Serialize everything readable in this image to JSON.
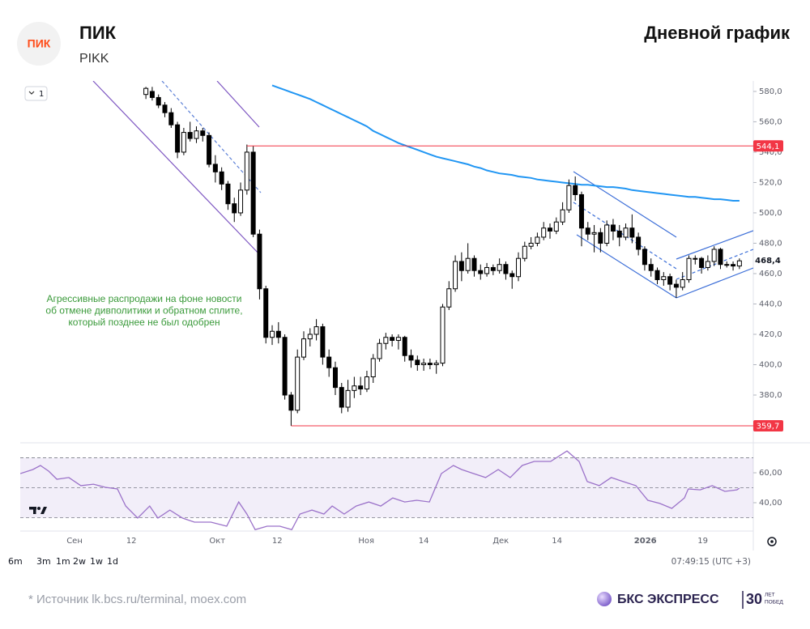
{
  "header": {
    "logo": "ПИК",
    "title": "ПИК",
    "ticker": "PIKK",
    "chart_kind": "Дневной график"
  },
  "toolbar": {
    "interval": "1",
    "ranges": [
      "6m",
      "3m",
      "1m",
      "2w",
      "1w",
      "1d"
    ],
    "time": "07:49:15 (UTC +3)"
  },
  "footer": {
    "source": "*  Источник lk.bcs.ru/terminal, moex.com",
    "brand": "БКС ЭКСПРЕСС",
    "years": "30",
    "years_note": [
      "ЛЕТ",
      "ПОБЕД"
    ]
  },
  "chart_data": [
    {
      "type": "candlestick",
      "annotation": [
        "Агрессивные распродажи на фоне новости",
        "об отмене дивполитики и обратном сплите,",
        "который позднее не был одобрен"
      ],
      "annotation_color": "#3a9a3a",
      "x": [
        0,
        1,
        2,
        3,
        4,
        5,
        6,
        7,
        8,
        9,
        10,
        11,
        12,
        13,
        14,
        15,
        16,
        17,
        18,
        19,
        20,
        21,
        22,
        23,
        24,
        25,
        26,
        27,
        28,
        29,
        30,
        31,
        32,
        33,
        34,
        35,
        36,
        37,
        38,
        39,
        40,
        41,
        42,
        43,
        44,
        45,
        46,
        47,
        48,
        49,
        50,
        51,
        52,
        53,
        54,
        55,
        56,
        57,
        58,
        59,
        60,
        61,
        62,
        63,
        64,
        65,
        66,
        67,
        68,
        69,
        70,
        71,
        72,
        73,
        74,
        75,
        76,
        77,
        78,
        79,
        80,
        81,
        82,
        83,
        84,
        85,
        86,
        87,
        88,
        89,
        90,
        91,
        92,
        93,
        94
      ],
      "open": [
        578,
        580,
        576,
        571,
        566,
        558,
        540,
        553,
        549,
        554,
        551,
        532,
        527,
        519,
        506,
        500,
        515,
        540,
        486,
        450,
        418,
        422,
        418,
        380,
        370,
        405,
        417,
        420,
        425,
        405,
        398,
        385,
        372,
        383,
        386,
        384,
        392,
        404,
        414,
        418,
        416,
        418,
        406,
        403,
        400,
        401,
        400,
        401,
        438,
        450,
        468,
        462,
        470,
        462,
        460,
        464,
        462,
        466,
        460,
        458,
        470,
        478,
        480,
        484,
        490,
        488,
        494,
        502,
        518,
        512,
        490,
        486,
        487,
        480,
        492,
        488,
        484,
        490,
        484,
        476,
        466,
        462,
        456,
        458,
        453,
        451,
        456,
        470,
        470,
        464,
        468,
        476,
        466,
        466,
        465
      ],
      "high": [
        583,
        583,
        578,
        573,
        569,
        560,
        556,
        560,
        557,
        556,
        553,
        538,
        530,
        521,
        510,
        520,
        545,
        544,
        489,
        452,
        426,
        428,
        420,
        382,
        410,
        422,
        424,
        430,
        427,
        410,
        402,
        388,
        390,
        392,
        392,
        396,
        407,
        417,
        421,
        420,
        420,
        419,
        410,
        406,
        404,
        404,
        403,
        440,
        455,
        472,
        474,
        480,
        472,
        466,
        467,
        466,
        470,
        468,
        462,
        474,
        481,
        484,
        487,
        494,
        493,
        497,
        507,
        522,
        524,
        514,
        494,
        492,
        490,
        495,
        496,
        492,
        493,
        499,
        487,
        478,
        470,
        464,
        461,
        460,
        456,
        461,
        472,
        472,
        471,
        472,
        478,
        477,
        468,
        468,
        470
      ],
      "low": [
        575,
        574,
        569,
        563,
        556,
        536,
        538,
        547,
        546,
        547,
        530,
        520,
        515,
        502,
        494,
        498,
        512,
        484,
        443,
        414,
        413,
        414,
        377,
        359.7,
        368,
        403,
        412,
        416,
        400,
        392,
        380,
        368,
        369,
        378,
        380,
        382,
        388,
        402,
        410,
        412,
        410,
        402,
        398,
        396,
        396,
        397,
        394,
        399,
        436,
        448,
        455,
        460,
        458,
        456,
        458,
        459,
        460,
        456,
        450,
        455,
        468,
        476,
        478,
        482,
        483,
        486,
        492,
        500,
        508,
        478,
        482,
        474,
        474,
        478,
        482,
        478,
        482,
        480,
        472,
        462,
        458,
        453,
        452,
        449,
        444,
        449,
        454,
        466,
        460,
        462,
        465,
        463,
        464,
        462,
        463
      ],
      "close": [
        582,
        576,
        571,
        566,
        558,
        540,
        553,
        549,
        554,
        551,
        532,
        527,
        519,
        506,
        500,
        515,
        540,
        486,
        450,
        418,
        422,
        418,
        380,
        370,
        405,
        417,
        420,
        425,
        405,
        398,
        385,
        372,
        383,
        386,
        384,
        392,
        404,
        414,
        418,
        416,
        418,
        406,
        403,
        400,
        401,
        400,
        401,
        438,
        450,
        468,
        462,
        470,
        462,
        460,
        464,
        462,
        466,
        460,
        458,
        470,
        478,
        480,
        484,
        490,
        488,
        494,
        502,
        518,
        512,
        490,
        486,
        487,
        480,
        492,
        488,
        484,
        490,
        484,
        476,
        466,
        462,
        456,
        458,
        453,
        451,
        456,
        470,
        470,
        464,
        468,
        476,
        466,
        466,
        465,
        468.4
      ],
      "up_color": "#ffffff",
      "down_color": "#000000",
      "ma": {
        "color": "#2196f3",
        "values": [
          null,
          null,
          null,
          null,
          null,
          null,
          null,
          null,
          null,
          null,
          null,
          null,
          null,
          null,
          null,
          null,
          null,
          null,
          null,
          null,
          584,
          582.5,
          581,
          579.5,
          578,
          576.5,
          575,
          573,
          571,
          569,
          567,
          565,
          563,
          561,
          559,
          557,
          554,
          552,
          550,
          548,
          546,
          544.5,
          543,
          541.5,
          540,
          538.5,
          537,
          536,
          535,
          534,
          533,
          532,
          530.5,
          529.5,
          528,
          527,
          526,
          525.5,
          525,
          524,
          523.5,
          523,
          522,
          521.5,
          521,
          520.5,
          520,
          519.5,
          519,
          518.5,
          518.5,
          518,
          517.5,
          517,
          517,
          516.5,
          516,
          515,
          514.5,
          514,
          513.5,
          513,
          512.5,
          512,
          511.5,
          511,
          510.5,
          510.5,
          510,
          509.5,
          509,
          509,
          508.5,
          508,
          508
        ]
      },
      "levels": [
        {
          "value": 544.1,
          "label": "544,1"
        },
        {
          "value": 359.7,
          "label": "359,7"
        }
      ],
      "level_color": "#f23645",
      "last": {
        "value": 468.4,
        "label": "468,4"
      },
      "xlim": [
        -19.9,
        96.2
      ],
      "xticks": [
        {
          "value": -11.3,
          "label": "Сен"
        },
        {
          "value": -2.3,
          "label": "12"
        },
        {
          "value": 11.3,
          "label": "Окт"
        },
        {
          "value": 20.8,
          "label": "12"
        },
        {
          "value": 34.9,
          "label": "Ноя"
        },
        {
          "value": 44,
          "label": "14"
        },
        {
          "value": 56.2,
          "label": "Дек"
        },
        {
          "value": 65.1,
          "label": "14"
        },
        {
          "value": 79.1,
          "label": "2026"
        },
        {
          "value": 88.2,
          "label": "19"
        }
      ],
      "ylim": [
        349.6,
        586.9
      ],
      "yticks": [
        {
          "value": 380,
          "label": "380,0"
        },
        {
          "value": 400,
          "label": "400,0"
        },
        {
          "value": 420,
          "label": "420,0"
        },
        {
          "value": 440,
          "label": "440,0"
        },
        {
          "value": 460,
          "label": "460,0"
        },
        {
          "value": 480,
          "label": "480,0"
        },
        {
          "value": 500,
          "label": "500,0"
        },
        {
          "value": 520,
          "label": "520,0"
        },
        {
          "value": 540,
          "label": "540,0"
        },
        {
          "value": 560,
          "label": "560,0"
        },
        {
          "value": 580,
          "label": "580,0"
        }
      ]
    },
    {
      "type": "line",
      "color": "#9b72c9",
      "band_color": "#7e57c2",
      "x": [
        -19.9,
        -17.9,
        -16.7,
        -15.4,
        -14.1,
        -12.2,
        -10.3,
        -8.3,
        -6.4,
        -4.5,
        -3.2,
        -1.3,
        0.6,
        1.9,
        3.8,
        5.8,
        7.7,
        10.3,
        12.8,
        14.7,
        16,
        17.3,
        19.2,
        21.2,
        23.1,
        24.4,
        26.3,
        28.2,
        29.5,
        31.4,
        33.3,
        35.3,
        37.2,
        39.1,
        41,
        42.9,
        44.9,
        46.8,
        48.7,
        50,
        51.9,
        53.8,
        55.8,
        57.7,
        59.6,
        61.5,
        64.1,
        66.7,
        68.6,
        69.9,
        71.8,
        73.7,
        75.6,
        77.6,
        79.5,
        81.4,
        83.3,
        85.3,
        85.9,
        87.8,
        89.7,
        91.7,
        93.6,
        94
      ],
      "values": [
        59.5,
        62.2,
        64.9,
        61.1,
        55.7,
        56.8,
        51.4,
        52.4,
        50.3,
        49.2,
        37.8,
        29.7,
        37.8,
        29.7,
        35.1,
        29.7,
        27,
        27,
        24.3,
        40.5,
        32.4,
        22,
        24.3,
        24.3,
        22,
        32.4,
        35.1,
        32.4,
        37.8,
        32.4,
        37.8,
        40.5,
        37.8,
        43.2,
        40.5,
        41.6,
        40.5,
        59.5,
        64.9,
        62.2,
        59.5,
        56.8,
        62.2,
        56.8,
        64.9,
        67.6,
        67.6,
        74.6,
        67.6,
        54.1,
        51.4,
        56.8,
        54.1,
        51.4,
        41.6,
        39.5,
        36.2,
        43.2,
        49.2,
        48.6,
        51.4,
        47.6,
        48.6,
        49.7
      ],
      "bands": [
        30,
        50,
        70
      ],
      "xlim": [
        -19.9,
        96.2
      ],
      "ylim": [
        21.6,
        79.5
      ],
      "yticks": [
        {
          "value": 40,
          "label": "40,00"
        },
        {
          "value": 60,
          "label": "60,00"
        }
      ]
    }
  ]
}
